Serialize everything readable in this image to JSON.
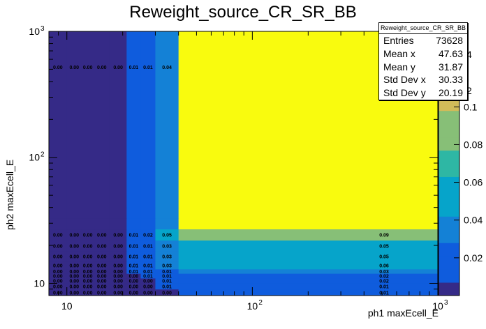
{
  "chart_data": {
    "type": "heatmap",
    "title": "Reweight_source_CR_SR_BB",
    "xlabel": "ph1 maxEcell_E",
    "ylabel": "ph2 maxEcell_E",
    "xscale": "log",
    "yscale": "log",
    "xlim": [
      8,
      1000
    ],
    "ylim": [
      8,
      1000
    ],
    "xticks": [
      {
        "value": 10,
        "base": "10",
        "exp": ""
      },
      {
        "value": 100,
        "base": "10",
        "exp": "2"
      },
      {
        "value": 1000,
        "base": "10",
        "exp": "3"
      }
    ],
    "yticks": [
      {
        "value": 10,
        "base": "10",
        "exp": ""
      },
      {
        "value": 100,
        "base": "10",
        "exp": "2"
      },
      {
        "value": 1000,
        "base": "10",
        "exp": "3"
      }
    ],
    "x_edges": [
      8,
      10,
      12,
      14,
      17,
      21,
      25,
      30,
      40,
      1000
    ],
    "y_edges": [
      8,
      9,
      10,
      11,
      12,
      13,
      15,
      18,
      22,
      27,
      33,
      40,
      1000
    ],
    "cells": [
      [
        0.0,
        0.0,
        0.0,
        0.0,
        0.0,
        0.0,
        0.0,
        0.0,
        0.01
      ],
      [
        0.0,
        0.0,
        0.0,
        0.0,
        0.0,
        0.0,
        0.0,
        0.01,
        0.01
      ],
      [
        0.0,
        0.0,
        0.0,
        0.0,
        0.0,
        0.0,
        0.0,
        0.01,
        0.02
      ],
      [
        0.0,
        0.0,
        0.0,
        0.0,
        0.0,
        0.0,
        0.01,
        0.01,
        0.02
      ],
      [
        0.0,
        0.0,
        0.0,
        0.0,
        0.0,
        0.01,
        0.01,
        0.01,
        0.03
      ],
      [
        0.0,
        0.0,
        0.0,
        0.0,
        0.0,
        0.01,
        0.01,
        0.03,
        0.06
      ],
      [
        0.0,
        0.0,
        0.0,
        0.0,
        0.0,
        0.01,
        0.01,
        0.03,
        0.05
      ],
      [
        0.0,
        0.0,
        0.0,
        0.0,
        0.0,
        0.01,
        0.01,
        0.03,
        0.05
      ],
      [
        0.0,
        0.0,
        0.0,
        0.0,
        0.0,
        0.01,
        0.02,
        0.05,
        0.09
      ],
      [
        0.0,
        0.0,
        0.0,
        0.0,
        0.0,
        0.01,
        0.01,
        0.04,
        0.14
      ],
      [
        0.0,
        0.0,
        0.0,
        0.0,
        0.0,
        0.01,
        0.01,
        0.04,
        0.14
      ],
      [
        0.0,
        0.0,
        0.0,
        0.0,
        0.0,
        0.01,
        0.01,
        0.04,
        0.14
      ]
    ],
    "label_rows": [
      0,
      1,
      2,
      3,
      4,
      5,
      6,
      7,
      8,
      11
    ],
    "colorbar": {
      "zmin": 0.0,
      "zmax": 0.14,
      "ticks": [
        0.02,
        0.04,
        0.06,
        0.08,
        0.1
      ],
      "upper_ticks": [
        "2",
        "4"
      ]
    },
    "palette": [
      "#352a87",
      "#0f5cdd",
      "#1481d6",
      "#06a4ca",
      "#2eb7a4",
      "#87bf77",
      "#d1bb59",
      "#fec832",
      "#f9fb0e"
    ],
    "stats": {
      "name": "Reweight_source_CR_SR_BB",
      "entries_label": "Entries",
      "entries": "73628",
      "meanx_label": "Mean x",
      "meanx": "47.63",
      "meany_label": "Mean y",
      "meany": "31.87",
      "stdx_label": "Std Dev x",
      "stdx": "30.33",
      "stdy_label": "Std Dev y",
      "stdy": "20.19"
    }
  }
}
